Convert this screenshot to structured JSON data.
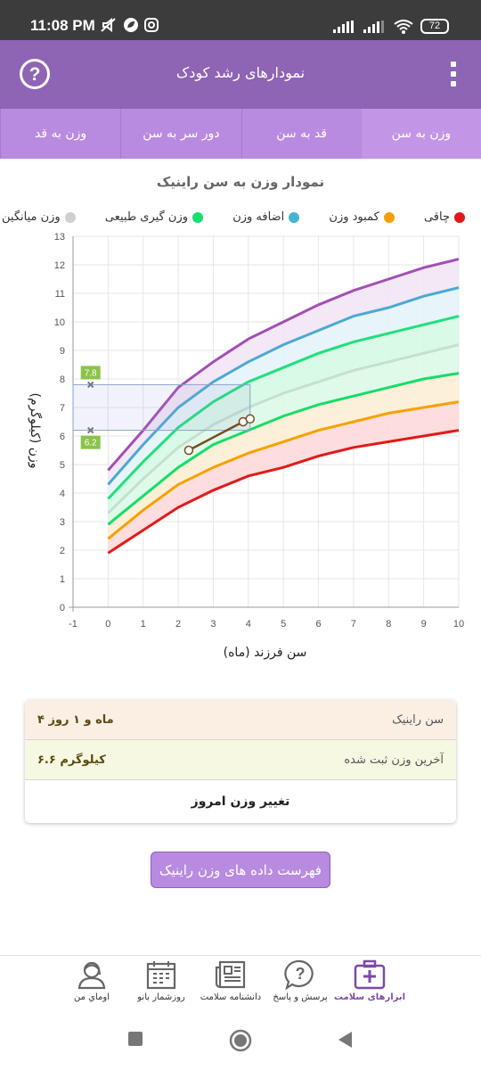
{
  "status": {
    "time": "11:08 PM",
    "battery": "72"
  },
  "header": {
    "title": "نمودارهای رشد کودک",
    "help": "?"
  },
  "tabs": [
    {
      "label": "وزن به سن",
      "active": true
    },
    {
      "label": "قد به سن",
      "active": false
    },
    {
      "label": "دور سر به سن",
      "active": false
    },
    {
      "label": "وزن به قد",
      "active": false
    }
  ],
  "chart_title": "نمودار وزن به سن راینیک",
  "legend": [
    {
      "label": "چاقی",
      "color": "#e0181c"
    },
    {
      "label": "کمبود وزن",
      "color": "#f5a000"
    },
    {
      "label": "اضافه وزن",
      "color": "#45b3d4"
    },
    {
      "label": "وزن گیری طبیعی",
      "color": "#14e070"
    },
    {
      "label": "وزن میانگین",
      "color": "#cfcfcf"
    }
  ],
  "chart_data": {
    "type": "line",
    "xlabel": "سن فرزند (ماه)",
    "ylabel": "وزن (کیلوگرم)",
    "xlim": [
      -1,
      10
    ],
    "ylim": [
      0,
      13
    ],
    "xticks": [
      -1,
      0,
      1,
      2,
      3,
      4,
      5,
      6,
      7,
      8,
      9,
      10
    ],
    "yticks": [
      0,
      1,
      2,
      3,
      4,
      5,
      6,
      7,
      8,
      9,
      10,
      11,
      12,
      13
    ],
    "x": [
      0,
      1,
      2,
      3,
      4,
      5,
      6,
      7,
      8,
      9,
      10
    ],
    "curves": [
      {
        "values": [
          4.8,
          6.2,
          7.7,
          8.6,
          9.4,
          10.0,
          10.6,
          11.1,
          11.5,
          11.9,
          12.2
        ],
        "color": "#a24fb4",
        "fill": "#f2e6f4"
      },
      {
        "values": [
          4.3,
          5.7,
          7.0,
          7.9,
          8.6,
          9.2,
          9.7,
          10.2,
          10.5,
          10.9,
          11.2
        ],
        "color": "#4aaad2",
        "fill": "#e4f3f9"
      },
      {
        "values": [
          3.8,
          5.1,
          6.3,
          7.2,
          7.9,
          8.4,
          8.9,
          9.3,
          9.6,
          9.9,
          10.2
        ],
        "color": "#1fe07c",
        "fill": "#d6fae6"
      },
      {
        "values": [
          3.3,
          4.5,
          5.6,
          6.4,
          7.0,
          7.5,
          7.9,
          8.3,
          8.6,
          8.9,
          9.2
        ],
        "color": "#c6dfcf",
        "fill": "#ddf9e8"
      },
      {
        "values": [
          2.9,
          3.9,
          4.9,
          5.7,
          6.2,
          6.7,
          7.1,
          7.4,
          7.7,
          8.0,
          8.2
        ],
        "color": "#16dd68",
        "fill": "#fdeed5"
      },
      {
        "values": [
          2.4,
          3.4,
          4.3,
          4.9,
          5.4,
          5.8,
          6.2,
          6.5,
          6.8,
          7.0,
          7.2
        ],
        "color": "#f4a200",
        "fill": "#fdd9d9"
      },
      {
        "values": [
          1.9,
          2.7,
          3.5,
          4.1,
          4.6,
          4.9,
          5.3,
          5.6,
          5.8,
          6.0,
          6.2
        ],
        "color": "#e11a1a",
        "fill": null
      }
    ],
    "measurements": {
      "x": [
        2.3,
        3.85,
        4.05
      ],
      "y": [
        5.5,
        6.5,
        6.6
      ],
      "color": "#7a4a22"
    },
    "highlight": {
      "x": [
        -1,
        4.05
      ],
      "y": [
        6.2,
        7.8
      ],
      "labels": [
        "7.8",
        "6.2"
      ]
    }
  },
  "info": {
    "age_label": "سن راینیک",
    "age_value": "۴ ماه و ۱ روز",
    "weight_label": "آخرین وزن ثبت شده",
    "weight_value": "۶.۶ کیلوگرم",
    "change_label": "تغییر وزن امروز"
  },
  "list_button": "فهرست داده های وزن راینیک",
  "bottom_nav": [
    {
      "label": "ابزارهای سلامت",
      "icon": "first-aid-kit-icon",
      "active": true
    },
    {
      "label": "پرسش و پاسخ",
      "icon": "question-bubble-icon",
      "active": false
    },
    {
      "label": "دانشنامه سلامت",
      "icon": "newspaper-icon",
      "active": false
    },
    {
      "label": "روزشمار بانو",
      "icon": "calendar-icon",
      "active": false
    },
    {
      "label": "اوماي من",
      "icon": "user-profile-icon",
      "active": false
    }
  ]
}
